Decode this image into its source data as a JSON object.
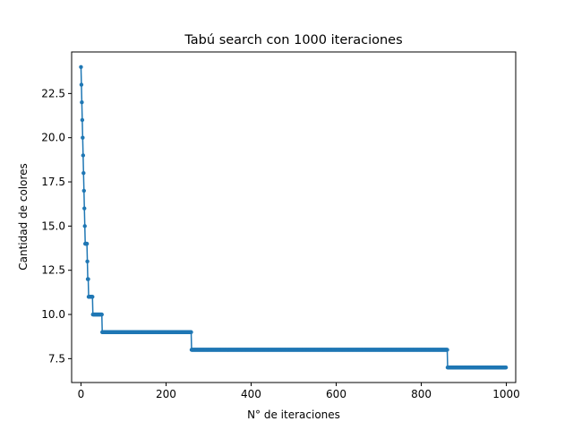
{
  "chart_data": {
    "type": "line",
    "title": "Tabú search con 1000 iteraciones",
    "xlabel": "N° de iteraciones",
    "ylabel": "Cantidad de colores",
    "xlim": [
      -22,
      1022
    ],
    "ylim": [
      6.15,
      24.85
    ],
    "xticks": [
      0,
      200,
      400,
      600,
      800,
      1000
    ],
    "xtick_labels": [
      "0",
      "200",
      "400",
      "600",
      "800",
      "1000"
    ],
    "yticks": [
      7.5,
      10.0,
      12.5,
      15.0,
      17.5,
      20.0,
      22.5
    ],
    "ytick_labels": [
      "7.5",
      "10.0",
      "12.5",
      "15.0",
      "17.5",
      "20.0",
      "22.5"
    ],
    "grid": false,
    "marker": "dot",
    "color": "#1f77b4",
    "series": [
      {
        "steps": [
          {
            "x": 0,
            "y": 24
          },
          {
            "x": 1,
            "y": 23
          },
          {
            "x": 2,
            "y": 22
          },
          {
            "x": 3,
            "y": 21
          },
          {
            "x": 4,
            "y": 20
          },
          {
            "x": 5,
            "y": 19
          },
          {
            "x": 6,
            "y": 18
          },
          {
            "x": 7,
            "y": 17
          },
          {
            "x": 8,
            "y": 16
          },
          {
            "x": 9,
            "y": 15
          },
          {
            "x": 10,
            "y": 14
          },
          {
            "x": 15,
            "y": 13
          },
          {
            "x": 16,
            "y": 12
          },
          {
            "x": 18,
            "y": 11
          },
          {
            "x": 28,
            "y": 10
          },
          {
            "x": 50,
            "y": 9
          },
          {
            "x": 260,
            "y": 8
          },
          {
            "x": 862,
            "y": 7
          },
          {
            "x": 999,
            "y": 7
          }
        ]
      }
    ]
  }
}
